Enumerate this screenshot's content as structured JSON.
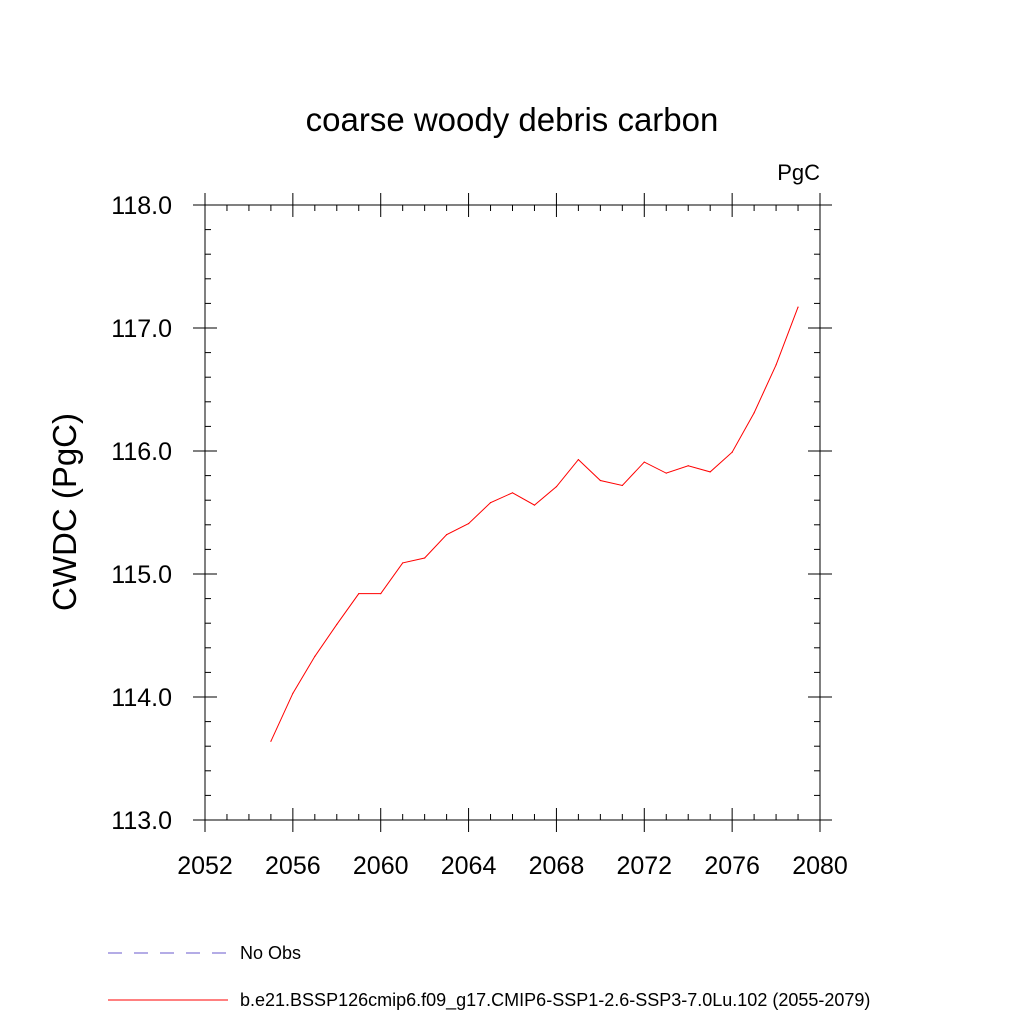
{
  "chart_data": {
    "type": "line",
    "title": "coarse woody debris carbon",
    "units": "PgC",
    "ylabel": "CWDC  (PgC)",
    "xlabel": "",
    "xlim": [
      2052,
      2080
    ],
    "ylim": [
      113.0,
      118.0
    ],
    "x_ticks": [
      2052,
      2056,
      2060,
      2064,
      2068,
      2072,
      2076,
      2080
    ],
    "y_ticks": [
      "113.0",
      "114.0",
      "115.0",
      "116.0",
      "117.0",
      "118.0"
    ],
    "grid": false,
    "legend_placement": "bottom",
    "series": [
      {
        "name": "b.e21.BSSP126cmip6.f09_g17.CMIP6-SSP1-2.6-SSP3-7.0Lu.102 (2055-2079)",
        "color": "#ff0000",
        "style": "solid",
        "x": [
          2055,
          2056,
          2057,
          2058,
          2059,
          2060,
          2061,
          2062,
          2063,
          2064,
          2065,
          2066,
          2067,
          2068,
          2069,
          2070,
          2071,
          2072,
          2073,
          2074,
          2075,
          2076,
          2077,
          2078,
          2079
        ],
        "y": [
          113.64,
          114.03,
          114.33,
          114.59,
          114.84,
          114.84,
          115.09,
          115.13,
          115.32,
          115.41,
          115.58,
          115.66,
          115.56,
          115.71,
          115.93,
          115.76,
          115.72,
          115.91,
          115.82,
          115.88,
          115.83,
          115.99,
          116.31,
          116.7,
          117.17
        ]
      }
    ],
    "legend": [
      {
        "label": "No Obs",
        "color": "#6a5acd",
        "style": "dashed"
      },
      {
        "label": "b.e21.BSSP126cmip6.f09_g17.CMIP6-SSP1-2.6-SSP3-7.0Lu.102 (2055-2079)",
        "color": "#ff0000",
        "style": "solid"
      }
    ]
  }
}
